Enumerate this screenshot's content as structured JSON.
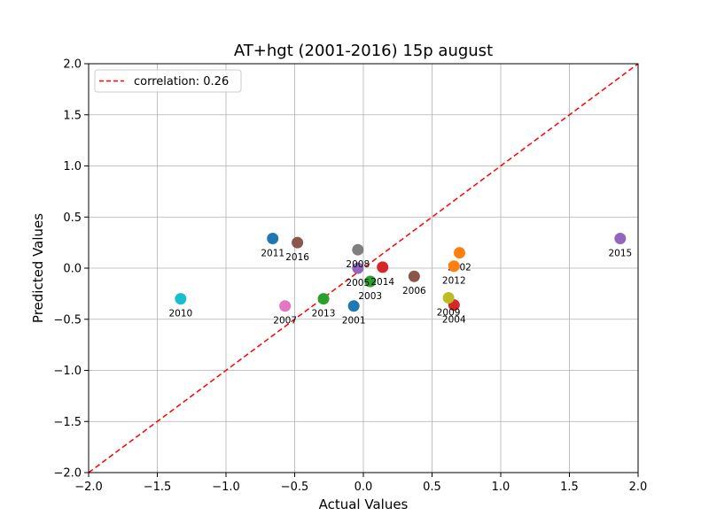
{
  "chart_data": {
    "type": "scatter",
    "title": "AT+hgt (2001-2016) 15p august",
    "xlabel": "Actual Values",
    "ylabel": "Predicted Values",
    "xlim": [
      -2.0,
      2.0
    ],
    "ylim": [
      -2.0,
      2.0
    ],
    "xticks": [
      "−2.0",
      "−1.5",
      "−1.0",
      "−0.5",
      "0.0",
      "0.5",
      "1.0",
      "1.5",
      "2.0"
    ],
    "yticks": [
      "−2.0",
      "−1.5",
      "−1.0",
      "−0.5",
      "0.0",
      "0.5",
      "1.0",
      "1.5",
      "2.0"
    ],
    "grid": true,
    "legend": {
      "placement": "top-left",
      "label": "correlation: 0.26"
    },
    "reference_line": {
      "style": "dashed",
      "color": "#ff0000",
      "from": [
        -2.0,
        -2.0
      ],
      "to": [
        2.0,
        2.0
      ]
    },
    "points": [
      {
        "label": "2001",
        "x": -0.07,
        "y": -0.37,
        "color": "#1f77b4"
      },
      {
        "label": "2002",
        "x": 0.7,
        "y": 0.15,
        "color": "#ff7f0e"
      },
      {
        "label": "2003",
        "x": 0.05,
        "y": -0.13,
        "color": "#2ca02c"
      },
      {
        "label": "2004",
        "x": 0.66,
        "y": -0.36,
        "color": "#d62728"
      },
      {
        "label": "2005",
        "x": -0.04,
        "y": 0.0,
        "color": "#9467bd"
      },
      {
        "label": "2006",
        "x": 0.37,
        "y": -0.08,
        "color": "#8c564b"
      },
      {
        "label": "2007",
        "x": -0.57,
        "y": -0.37,
        "color": "#e377c2"
      },
      {
        "label": "2008",
        "x": -0.04,
        "y": 0.18,
        "color": "#7f7f7f"
      },
      {
        "label": "2009",
        "x": 0.62,
        "y": -0.29,
        "color": "#bcbd22"
      },
      {
        "label": "2010",
        "x": -1.33,
        "y": -0.3,
        "color": "#17becf"
      },
      {
        "label": "2011",
        "x": -0.66,
        "y": 0.29,
        "color": "#1f77b4"
      },
      {
        "label": "2012",
        "x": 0.66,
        "y": 0.02,
        "color": "#ff7f0e"
      },
      {
        "label": "2013",
        "x": -0.29,
        "y": -0.3,
        "color": "#2ca02c"
      },
      {
        "label": "2014",
        "x": 0.14,
        "y": 0.01,
        "color": "#d62728"
      },
      {
        "label": "2015",
        "x": 1.87,
        "y": 0.29,
        "color": "#9467bd"
      },
      {
        "label": "2016",
        "x": -0.48,
        "y": 0.25,
        "color": "#8c564b"
      }
    ]
  }
}
